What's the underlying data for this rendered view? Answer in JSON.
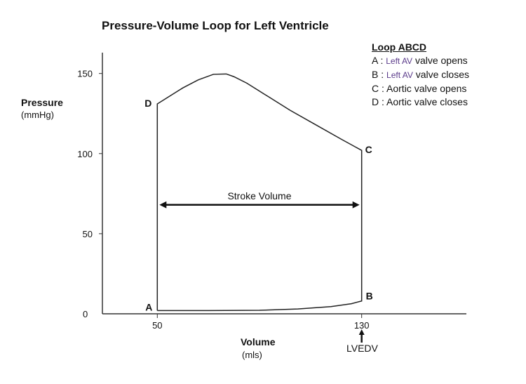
{
  "chart_data": {
    "type": "line",
    "title": "Pressure-Volume Loop for Left Ventricle",
    "ylabel": "Pressure",
    "yunit": "(mmHg)",
    "xlabel": "Volume",
    "xunit": "(mls)",
    "ylim": [
      0,
      163
    ],
    "xlim": [
      28.5,
      171
    ],
    "yticks": [
      "0",
      "50",
      "100",
      "150"
    ],
    "ytick_values": [
      0,
      50,
      100,
      150
    ],
    "xticks": [
      "50",
      "130"
    ],
    "xtick_values": [
      50,
      130
    ],
    "grid": false,
    "loop": [
      [
        50,
        2
      ],
      [
        52,
        2
      ],
      [
        70,
        2
      ],
      [
        90,
        2.2
      ],
      [
        105,
        3
      ],
      [
        118,
        4.5
      ],
      [
        126,
        6.3
      ],
      [
        130,
        8
      ],
      [
        130,
        102
      ],
      [
        122,
        109
      ],
      [
        112,
        118
      ],
      [
        102,
        127
      ],
      [
        92,
        137
      ],
      [
        85,
        144
      ],
      [
        80,
        148
      ],
      [
        77,
        149.7
      ],
      [
        72,
        149.5
      ],
      [
        66,
        146
      ],
      [
        60,
        141
      ],
      [
        54,
        135
      ],
      [
        50,
        131
      ],
      [
        50,
        2
      ]
    ],
    "point_labels": [
      {
        "label": "A",
        "x": 50,
        "y": 2
      },
      {
        "label": "B",
        "x": 130,
        "y": 8
      },
      {
        "label": "C",
        "x": 130,
        "y": 102
      },
      {
        "label": "D",
        "x": 50,
        "y": 131
      }
    ],
    "annotations": {
      "stroke_volume": {
        "text": "Stroke Volume",
        "x_from": 50,
        "x_to": 130,
        "y": 68
      },
      "lvedv": {
        "text": "LVEDV",
        "x": 130
      }
    },
    "legend": {
      "placement": "top-right",
      "heading": "Loop  ABCD",
      "items": [
        {
          "key": "A :",
          "colored": "Left AV",
          "rest": "valve opens"
        },
        {
          "key": "B :",
          "colored": "Left AV",
          "rest": "valve closes"
        },
        {
          "key": "C :",
          "colored": "",
          "rest": "Aortic valve opens"
        },
        {
          "key": "D :",
          "colored": "",
          "rest": "Aortic valve closes"
        }
      ]
    }
  }
}
